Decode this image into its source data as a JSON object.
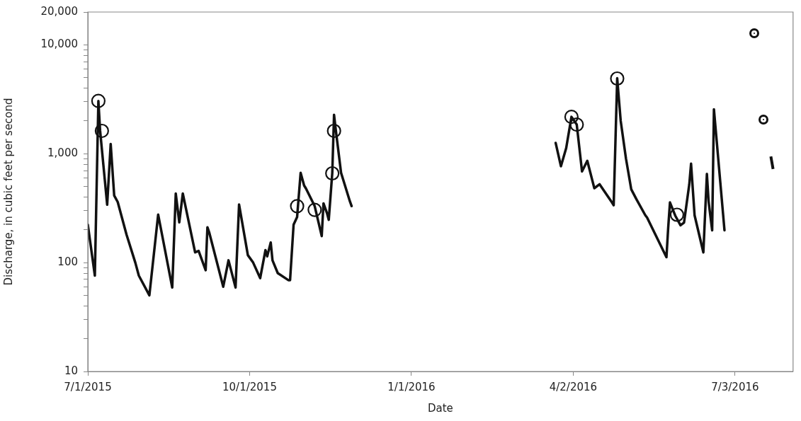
{
  "chart_data": {
    "type": "line",
    "xlabel": "Date",
    "ylabel": "Discharge, in cubic feet per second",
    "log": "y",
    "grid": false,
    "legend": false,
    "line_style": "solid",
    "xlim": [
      "2015-07-01",
      "2016-08-05"
    ],
    "xticks": [
      {
        "value": "2015-07-01",
        "label": "7/1/2015"
      },
      {
        "value": "2015-10-01",
        "label": "10/1/2015"
      },
      {
        "value": "2016-01-01",
        "label": "1/1/2016"
      },
      {
        "value": "2016-04-02",
        "label": "4/2/2016"
      },
      {
        "value": "2016-07-03",
        "label": "7/3/2016"
      }
    ],
    "ylim": [
      10,
      20000
    ],
    "yticks": [
      {
        "value": 10,
        "label": "10"
      },
      {
        "value": 20,
        "label": null
      },
      {
        "value": 30,
        "label": null
      },
      {
        "value": 40,
        "label": null
      },
      {
        "value": 50,
        "label": null
      },
      {
        "value": 60,
        "label": null
      },
      {
        "value": 70,
        "label": null
      },
      {
        "value": 80,
        "label": null
      },
      {
        "value": 90,
        "label": null
      },
      {
        "value": 100,
        "label": "100"
      },
      {
        "value": 200,
        "label": null
      },
      {
        "value": 300,
        "label": null
      },
      {
        "value": 400,
        "label": null
      },
      {
        "value": 500,
        "label": null
      },
      {
        "value": 600,
        "label": null
      },
      {
        "value": 700,
        "label": null
      },
      {
        "value": 800,
        "label": null
      },
      {
        "value": 900,
        "label": null
      },
      {
        "value": 1000,
        "label": "1,000"
      },
      {
        "value": 2000,
        "label": null
      },
      {
        "value": 3000,
        "label": null
      },
      {
        "value": 4000,
        "label": null
      },
      {
        "value": 5000,
        "label": null
      },
      {
        "value": 6000,
        "label": null
      },
      {
        "value": 7000,
        "label": null
      },
      {
        "value": 8000,
        "label": null
      },
      {
        "value": 9000,
        "label": null
      },
      {
        "value": 10000,
        "label": "10,000"
      },
      {
        "value": 20000,
        "label": "20,000"
      }
    ],
    "series": [
      {
        "type": "line",
        "color": "#111111",
        "x": [
          "2015-07-01",
          "2015-07-05",
          "2015-07-07",
          "2015-07-08",
          "2015-07-12",
          "2015-07-14",
          "2015-07-16",
          "2015-07-18",
          "2015-07-23",
          "2015-07-28",
          "2015-07-30",
          "2015-08-05",
          "2015-08-10",
          "2015-08-18",
          "2015-08-20",
          "2015-08-22",
          "2015-08-24",
          "2015-08-31",
          "2015-09-02",
          "2015-09-06",
          "2015-09-07",
          "2015-09-08",
          "2015-09-16",
          "2015-09-19",
          "2015-09-23",
          "2015-09-25",
          "2015-09-30",
          "2015-10-03",
          "2015-10-07",
          "2015-10-10",
          "2015-10-11",
          "2015-10-13",
          "2015-10-14",
          "2015-10-17",
          "2015-10-23",
          "2015-10-24",
          "2015-10-26",
          "2015-10-28",
          "2015-10-30",
          "2015-11-01",
          "2015-11-02",
          "2015-11-07",
          "2015-11-11",
          "2015-11-12",
          "2015-11-14",
          "2015-11-15",
          "2015-11-17",
          "2015-11-18",
          "2015-11-19",
          "2015-11-22",
          "2015-11-27",
          "2015-11-28"
        ],
        "values": [
          223,
          76,
          3050,
          1620,
          340,
          1230,
          413,
          360,
          181,
          100,
          76,
          50,
          276,
          59,
          431,
          234,
          431,
          124,
          128,
          85,
          211,
          190,
          60,
          105,
          59,
          342,
          117,
          100,
          72,
          130,
          114,
          153,
          105,
          80,
          69,
          69,
          223,
          262,
          667,
          510,
          480,
          330,
          175,
          350,
          284,
          247,
          667,
          2280,
          1650,
          667,
          366,
          330
        ]
      },
      {
        "type": "line",
        "color": "#111111",
        "x": [
          "2016-03-23",
          "2016-03-26",
          "2016-03-29",
          "2016-04-01",
          "2016-04-04",
          "2016-04-07",
          "2016-04-10",
          "2016-04-14",
          "2016-04-17",
          "2016-04-24",
          "2016-04-25",
          "2016-04-27",
          "2016-04-29",
          "2016-05-02",
          "2016-05-05",
          "2016-05-08",
          "2016-05-13",
          "2016-05-14",
          "2016-05-25",
          "2016-05-26",
          "2016-05-27",
          "2016-05-30",
          "2016-06-02",
          "2016-06-04",
          "2016-06-07",
          "2016-06-08",
          "2016-06-10",
          "2016-06-15",
          "2016-06-17",
          "2016-06-18",
          "2016-06-20",
          "2016-06-21",
          "2016-06-27"
        ],
        "values": [
          1256,
          767,
          1127,
          2180,
          1850,
          687,
          860,
          482,
          524,
          357,
          336,
          4930,
          2000,
          900,
          470,
          380,
          272,
          259,
          112,
          209,
          357,
          270,
          220,
          233,
          525,
          810,
          272,
          124,
          652,
          360,
          198,
          2560,
          198
        ]
      },
      {
        "type": "scatter",
        "color": "#111111",
        "marker": "circle",
        "x": [
          "2015-07-07",
          "2015-07-09",
          "2015-10-28",
          "2015-11-07",
          "2015-11-17",
          "2015-11-18",
          "2016-04-01",
          "2016-04-04",
          "2016-04-27",
          "2016-05-31"
        ],
        "values": [
          3050,
          1620,
          330,
          305,
          660,
          1620,
          2180,
          1850,
          4900,
          275
        ]
      }
    ]
  }
}
